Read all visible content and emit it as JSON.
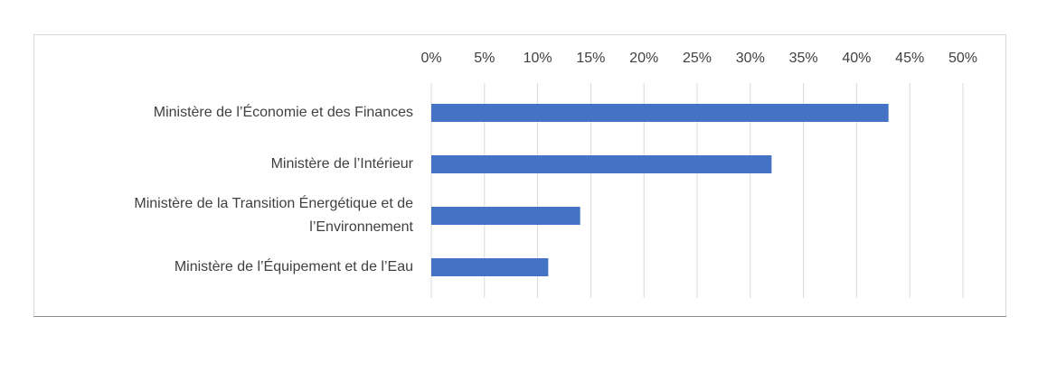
{
  "chart_data": {
    "type": "bar",
    "orientation": "horizontal",
    "categories": [
      "Ministère de l’Économie et des Finances",
      "Ministère de l’Intérieur",
      "Ministère de la Transition Énergétique et de l’Environnement",
      "Ministère de l’Équipement et de l’Eau"
    ],
    "values": [
      43,
      32,
      14,
      11
    ],
    "color": "#4472c4",
    "xlim": [
      0,
      50
    ],
    "xticks": [
      {
        "value": 0,
        "label": "0%"
      },
      {
        "value": 5,
        "label": "5%"
      },
      {
        "value": 10,
        "label": "10%"
      },
      {
        "value": 15,
        "label": "15%"
      },
      {
        "value": 20,
        "label": "20%"
      },
      {
        "value": 25,
        "label": "25%"
      },
      {
        "value": 30,
        "label": "30%"
      },
      {
        "value": 35,
        "label": "35%"
      },
      {
        "value": 40,
        "label": "40%"
      },
      {
        "value": 45,
        "label": "45%"
      },
      {
        "value": 50,
        "label": "50%"
      }
    ],
    "grid": true
  }
}
